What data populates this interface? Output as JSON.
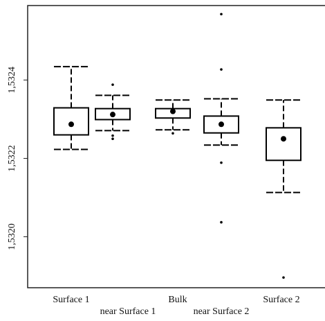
{
  "chart_data": {
    "type": "box",
    "categories": [
      "Surface 1",
      "near Surface 1",
      "Bulk",
      "near Surface 2",
      "Surface 2"
    ],
    "boxes": [
      {
        "whislo": 1.532223,
        "q1": 1.53226,
        "med": 1.532287,
        "q3": 1.532329,
        "whishi": 1.532434,
        "fliers": []
      },
      {
        "whislo": 1.532271,
        "q1": 1.532299,
        "med": 1.532312,
        "q3": 1.532327,
        "whishi": 1.532361,
        "fliers": [
          1.532388,
          1.532258,
          1.53225
        ]
      },
      {
        "whislo": 1.532273,
        "q1": 1.532303,
        "med": 1.53232,
        "q3": 1.532327,
        "whishi": 1.532349,
        "fliers": [
          1.532264
        ]
      },
      {
        "whislo": 1.532234,
        "q1": 1.532265,
        "med": 1.532287,
        "q3": 1.532308,
        "whishi": 1.532352,
        "fliers": [
          1.532568,
          1.532427,
          1.532189,
          1.532037
        ]
      },
      {
        "whislo": 1.532113,
        "q1": 1.532195,
        "med": 1.53225,
        "q3": 1.532278,
        "whishi": 1.532349,
        "fliers": [
          1.531896
        ]
      }
    ],
    "color": "#000000",
    "ylim": [
      1.53187,
      1.53259
    ],
    "yticks": [
      {
        "value": 1.532,
        "label": "1,5320"
      },
      {
        "value": 1.5322,
        "label": "1,5322"
      },
      {
        "value": 1.5324,
        "label": "1,5324"
      }
    ]
  }
}
